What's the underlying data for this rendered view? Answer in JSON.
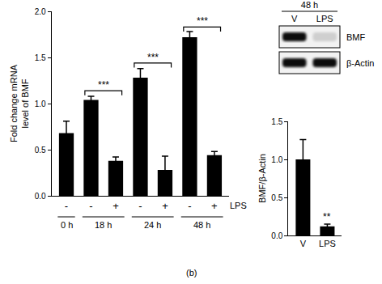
{
  "chart_data": [
    {
      "type": "bar",
      "y_label": [
        "Fold change mRNA",
        "level of BMF"
      ],
      "categories": [
        "-",
        "-",
        "+",
        "-",
        "+",
        "-",
        "+"
      ],
      "values": [
        0.68,
        1.04,
        0.38,
        1.28,
        0.28,
        1.72,
        0.44
      ],
      "errors": [
        0.13,
        0.04,
        0.04,
        0.1,
        0.15,
        0.06,
        0.04
      ],
      "color": "#000000",
      "ylim": [
        0,
        2
      ],
      "yticks": [
        {
          "value": 0,
          "label": "0.0"
        },
        {
          "value": 0.5,
          "label": "0.5"
        },
        {
          "value": 1,
          "label": "1.0"
        },
        {
          "value": 1.5,
          "label": "1.5"
        },
        {
          "value": 2,
          "label": "2.0"
        }
      ],
      "row_label": "LPS",
      "groups": [
        {
          "label": "0 h",
          "from": 0,
          "to": 0
        },
        {
          "label": "18 h",
          "from": 1,
          "to": 2
        },
        {
          "label": "24 h",
          "from": 3,
          "to": 4
        },
        {
          "label": "48 h",
          "from": 5,
          "to": 6
        }
      ],
      "significance": [
        {
          "label": "***",
          "from": 1,
          "to": 2,
          "y": 1.14
        },
        {
          "label": "***",
          "from": 3,
          "to": 4,
          "y": 1.44
        },
        {
          "label": "***",
          "from": 5,
          "to": 6,
          "y": 1.83
        }
      ]
    },
    {
      "type": "bar",
      "y_label": [
        "BMF/β-Actin"
      ],
      "categories": [
        "V",
        "LPS"
      ],
      "values": [
        1.0,
        0.12
      ],
      "errors": [
        0.26,
        0.03
      ],
      "color": "#000000",
      "ylim": [
        0,
        1.5
      ],
      "yticks": [
        {
          "value": 0,
          "label": "0.0"
        },
        {
          "value": 0.5,
          "label": "0.5"
        },
        {
          "value": 1,
          "label": "1.0"
        },
        {
          "value": 1.5,
          "label": "1.5"
        }
      ],
      "significance": [
        {
          "label": "**",
          "from": 1,
          "to": 1,
          "y": 0.17
        }
      ]
    }
  ],
  "blot": {
    "time": "48 h",
    "lanes": [
      "V",
      "LPS"
    ],
    "rows": [
      "BMF",
      "β-Actin"
    ],
    "band_intensity": [
      [
        1,
        0.1
      ],
      [
        1,
        1
      ]
    ]
  },
  "panel_label": "(b)"
}
